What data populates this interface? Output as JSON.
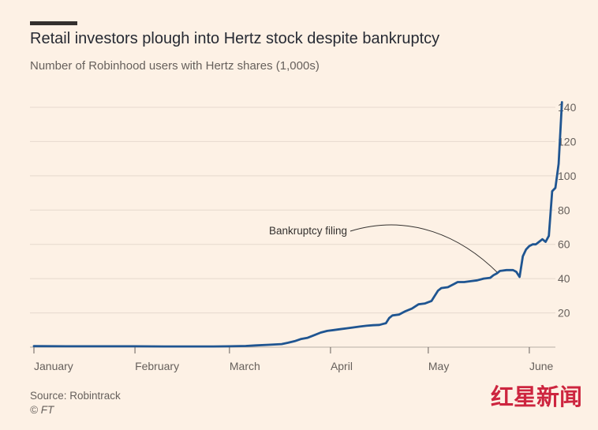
{
  "header": {
    "title": "Retail investors plough into Hertz stock despite bankruptcy",
    "subtitle": "Number of Robinhood users with Hertz shares (1,000s)"
  },
  "footer": {
    "source": "Source: Robintrack",
    "credit": "© FT"
  },
  "watermark": {
    "text": "红星新闻",
    "color": "#c8102e"
  },
  "colors": {
    "line": "#1f5591",
    "grid": "#e6d9ce",
    "axis": "#66605c",
    "background": "#fdf1e5"
  },
  "chart_data": {
    "type": "line",
    "title": "Retail investors plough into Hertz stock despite bankruptcy",
    "ylabel": "Number of Robinhood users with Hertz shares (1,000s)",
    "xlabel": "",
    "ylim": [
      0,
      140
    ],
    "yticks": [
      20,
      40,
      60,
      80,
      100,
      120,
      140
    ],
    "xlim": [
      0,
      160
    ],
    "months": [
      {
        "label": "January",
        "day": 0
      },
      {
        "label": "February",
        "day": 31
      },
      {
        "label": "March",
        "day": 60
      },
      {
        "label": "April",
        "day": 91
      },
      {
        "label": "May",
        "day": 121
      },
      {
        "label": "June",
        "day": 152
      }
    ],
    "grid": true,
    "annotation": {
      "text": "Bankruptcy filing",
      "day": 143,
      "value": 43
    },
    "series": [
      {
        "name": "Robinhood users with Hertz shares",
        "points": [
          [
            0,
            0.6
          ],
          [
            10,
            0.5
          ],
          [
            20,
            0.5
          ],
          [
            31,
            0.5
          ],
          [
            40,
            0.4
          ],
          [
            50,
            0.4
          ],
          [
            55,
            0.4
          ],
          [
            60,
            0.5
          ],
          [
            65,
            0.7
          ],
          [
            68,
            1.0
          ],
          [
            72,
            1.4
          ],
          [
            76,
            1.8
          ],
          [
            78,
            2.6
          ],
          [
            80,
            3.5
          ],
          [
            82,
            4.8
          ],
          [
            84,
            5.5
          ],
          [
            86,
            7.0
          ],
          [
            88,
            8.5
          ],
          [
            90,
            9.5
          ],
          [
            92,
            10.0
          ],
          [
            94,
            10.5
          ],
          [
            96,
            11.0
          ],
          [
            98,
            11.5
          ],
          [
            100,
            12.0
          ],
          [
            102,
            12.5
          ],
          [
            104,
            12.8
          ],
          [
            106,
            13.0
          ],
          [
            107,
            13.5
          ],
          [
            108,
            14.0
          ],
          [
            109,
            17.0
          ],
          [
            110,
            18.5
          ],
          [
            112,
            19.0
          ],
          [
            114,
            21.0
          ],
          [
            116,
            22.5
          ],
          [
            118,
            25.0
          ],
          [
            120,
            25.5
          ],
          [
            122,
            27.0
          ],
          [
            123,
            30.0
          ],
          [
            124,
            33.0
          ],
          [
            125,
            34.5
          ],
          [
            127,
            35.0
          ],
          [
            129,
            37.0
          ],
          [
            130,
            38.0
          ],
          [
            132,
            38.0
          ],
          [
            134,
            38.5
          ],
          [
            136,
            39.0
          ],
          [
            138,
            40.0
          ],
          [
            140,
            40.5
          ],
          [
            141,
            42.0
          ],
          [
            142,
            43.0
          ],
          [
            143,
            44.5
          ],
          [
            145,
            45.0
          ],
          [
            147,
            45.0
          ],
          [
            148,
            44.0
          ],
          [
            149,
            41.0
          ],
          [
            150,
            53.0
          ],
          [
            151,
            57.0
          ],
          [
            152,
            59.0
          ],
          [
            153,
            60.0
          ],
          [
            154,
            60.0
          ],
          [
            155,
            61.5
          ],
          [
            156,
            63.0
          ],
          [
            157,
            61.5
          ],
          [
            158,
            65.0
          ],
          [
            158.5,
            78.0
          ],
          [
            159,
            91.0
          ],
          [
            160,
            93.0
          ],
          [
            161,
            107.0
          ],
          [
            162,
            143.0
          ]
        ]
      }
    ]
  }
}
